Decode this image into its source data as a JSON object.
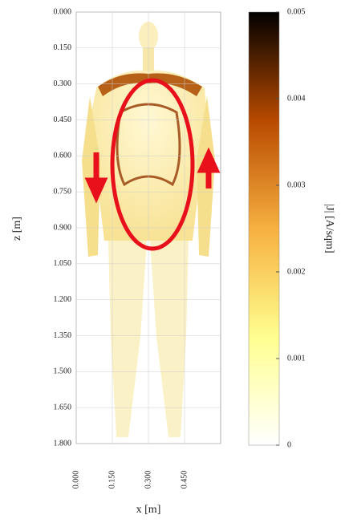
{
  "chart_data": {
    "type": "heatmap",
    "xlabel": "x [m]",
    "ylabel": "z [m]",
    "xlim": [
      0,
      0.6
    ],
    "ylim": [
      0,
      1.8
    ],
    "y_inverted": true,
    "xticks": [
      {
        "value": 0,
        "label": "0.000"
      },
      {
        "value": 0.15,
        "label": "0.150"
      },
      {
        "value": 0.3,
        "label": "0.300"
      },
      {
        "value": 0.45,
        "label": "0.450"
      }
    ],
    "yticks": [
      {
        "value": 0,
        "label": "0.000"
      },
      {
        "value": 0.15,
        "label": "0.150"
      },
      {
        "value": 0.3,
        "label": "0.300"
      },
      {
        "value": 0.45,
        "label": "0.450"
      },
      {
        "value": 0.6,
        "label": "0.600"
      },
      {
        "value": 0.75,
        "label": "0.750"
      },
      {
        "value": 0.9,
        "label": "0.900"
      },
      {
        "value": 1.05,
        "label": "1.050"
      },
      {
        "value": 1.2,
        "label": "1.200"
      },
      {
        "value": 1.35,
        "label": "1.350"
      },
      {
        "value": 1.5,
        "label": "1.500"
      },
      {
        "value": 1.65,
        "label": "1.650"
      },
      {
        "value": 1.8,
        "label": "1.800"
      }
    ],
    "grid": true,
    "colorbar": {
      "label": "|J| [A/sqm]",
      "lim": [
        0,
        0.005
      ],
      "ticks": [
        0,
        0.001,
        0.002,
        0.003,
        0.004,
        0.005
      ],
      "colormap": [
        "#ffffff",
        "#ffff90",
        "#f6b040",
        "#b84a00",
        "#000000"
      ]
    }
  }
}
